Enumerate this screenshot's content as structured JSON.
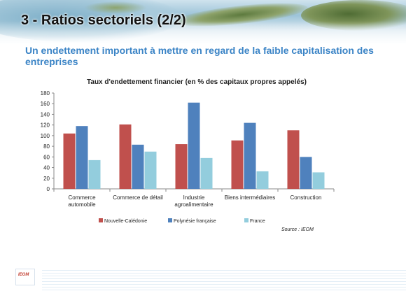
{
  "header": {
    "title": "3 - Ratios sectoriels (2/2)",
    "subtitle": "Un endettement important à mettre en regard de la faible capitalisation des entreprises"
  },
  "footer": {
    "logo_text": "IEOM"
  },
  "source": "Source : IEOM",
  "chart_data": {
    "type": "bar",
    "title": "Taux d'endettement financier (en % des capitaux propres appelés)",
    "xlabel": "",
    "ylabel": "",
    "ylim": [
      0,
      180
    ],
    "yticks": [
      "0",
      "20",
      "40",
      "60",
      "80",
      "100",
      "120",
      "140",
      "160",
      "180"
    ],
    "grid": false,
    "legend_position": "bottom",
    "categories": [
      [
        "Commerce",
        "automobile"
      ],
      [
        "Commerce de détail"
      ],
      [
        "Industrie",
        "agroalimentaire"
      ],
      [
        "Biens intermédiaires"
      ],
      [
        "Construction"
      ]
    ],
    "series": [
      {
        "name": "Nouvelle-Calédonie",
        "color": "#c0504d",
        "values": [
          104,
          121,
          84,
          91,
          110
        ]
      },
      {
        "name": "Polynésie française",
        "color": "#4f81bd",
        "values": [
          118,
          83,
          162,
          124,
          60
        ]
      },
      {
        "name": "France",
        "color": "#93cddd",
        "values": [
          54,
          70,
          58,
          33,
          31
        ]
      }
    ]
  }
}
